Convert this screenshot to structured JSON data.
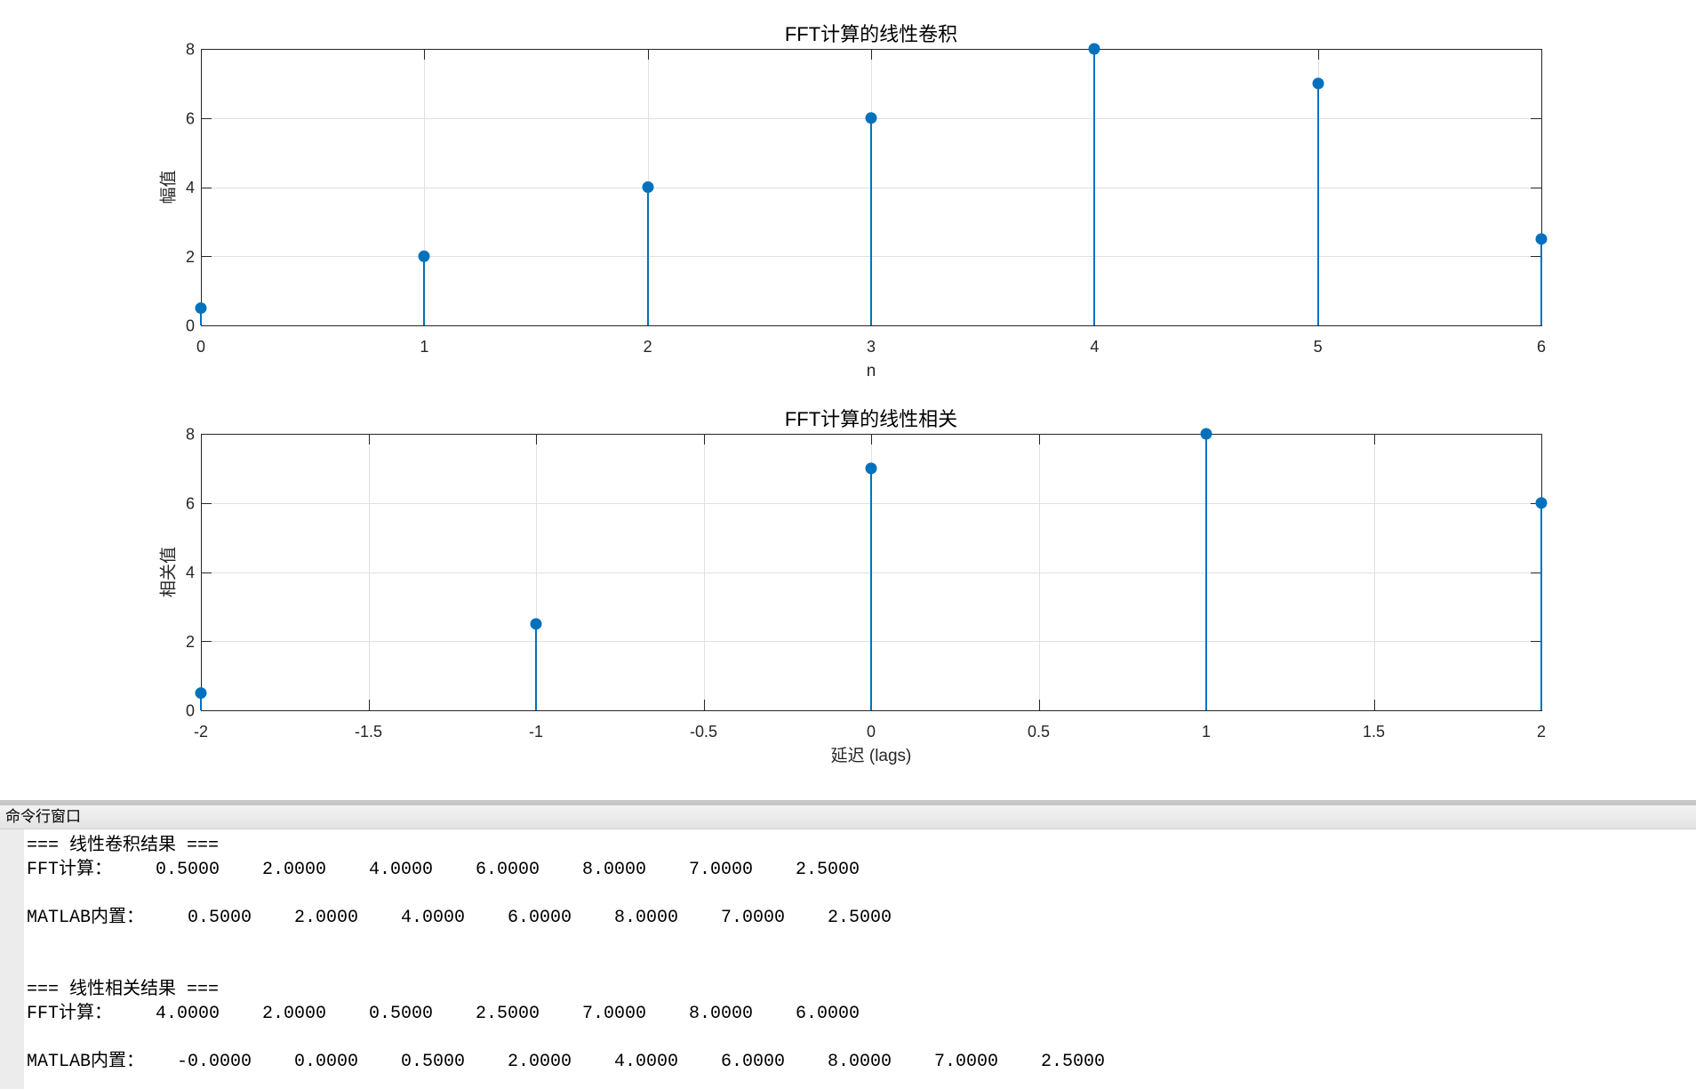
{
  "chart_data": [
    {
      "type": "bar",
      "stem": true,
      "title": "FFT计算的线性卷积",
      "xlabel": "n",
      "ylabel": "幅值",
      "x": [
        0,
        1,
        2,
        3,
        4,
        5,
        6
      ],
      "y": [
        0.5,
        2,
        4,
        6,
        8,
        7,
        2.5
      ],
      "xlim": [
        0,
        6
      ],
      "ylim": [
        0,
        8
      ],
      "xticks": [
        0,
        1,
        2,
        3,
        4,
        5,
        6
      ],
      "xticklabels": [
        "0",
        "1",
        "2",
        "3",
        "4",
        "5",
        "6"
      ],
      "yticks": [
        0,
        2,
        4,
        6,
        8
      ],
      "yticklabels": [
        "0",
        "2",
        "4",
        "6",
        "8"
      ],
      "grid": true,
      "color": "#0072BD"
    },
    {
      "type": "bar",
      "stem": true,
      "title": "FFT计算的线性相关",
      "xlabel": "延迟 (lags)",
      "ylabel": "相关值",
      "x": [
        -2,
        -1,
        0,
        1,
        2
      ],
      "y": [
        0.5,
        2.5,
        7,
        8,
        6
      ],
      "xlim": [
        -2,
        2
      ],
      "ylim": [
        0,
        8
      ],
      "xticks": [
        -2,
        -1.5,
        -1,
        -0.5,
        0,
        0.5,
        1,
        1.5,
        2
      ],
      "xticklabels": [
        "-2",
        "-1.5",
        "-1",
        "-0.5",
        "0",
        "0.5",
        "1",
        "1.5",
        "2"
      ],
      "yticks": [
        0,
        2,
        4,
        6,
        8
      ],
      "yticklabels": [
        "0",
        "2",
        "4",
        "6",
        "8"
      ],
      "grid": true,
      "color": "#0072BD"
    }
  ],
  "command_window": {
    "title": "命令行窗口",
    "sections": [
      {
        "heading": "=== 线性卷积结果 ===",
        "rows": [
          {
            "label": "FFT计算：",
            "values": [
              "0.5000",
              "2.0000",
              "4.0000",
              "6.0000",
              "8.0000",
              "7.0000",
              "2.5000"
            ]
          },
          {
            "label": "MATLAB内置：",
            "values": [
              "0.5000",
              "2.0000",
              "4.0000",
              "6.0000",
              "8.0000",
              "7.0000",
              "2.5000"
            ]
          }
        ]
      },
      {
        "heading": "=== 线性相关结果 ===",
        "rows": [
          {
            "label": "FFT计算：",
            "values": [
              "4.0000",
              "2.0000",
              "0.5000",
              "2.5000",
              "7.0000",
              "8.0000",
              "6.0000"
            ]
          },
          {
            "label": "MATLAB内置：",
            "values": [
              "-0.0000",
              "0.0000",
              "0.5000",
              "2.0000",
              "4.0000",
              "6.0000",
              "8.0000",
              "7.0000",
              "2.5000"
            ]
          }
        ]
      }
    ]
  },
  "colors": {
    "axes": "#262626",
    "grid": "#e0e0e0",
    "panel_header": "#e8e8e8",
    "panel_gutter": "#ececec"
  }
}
